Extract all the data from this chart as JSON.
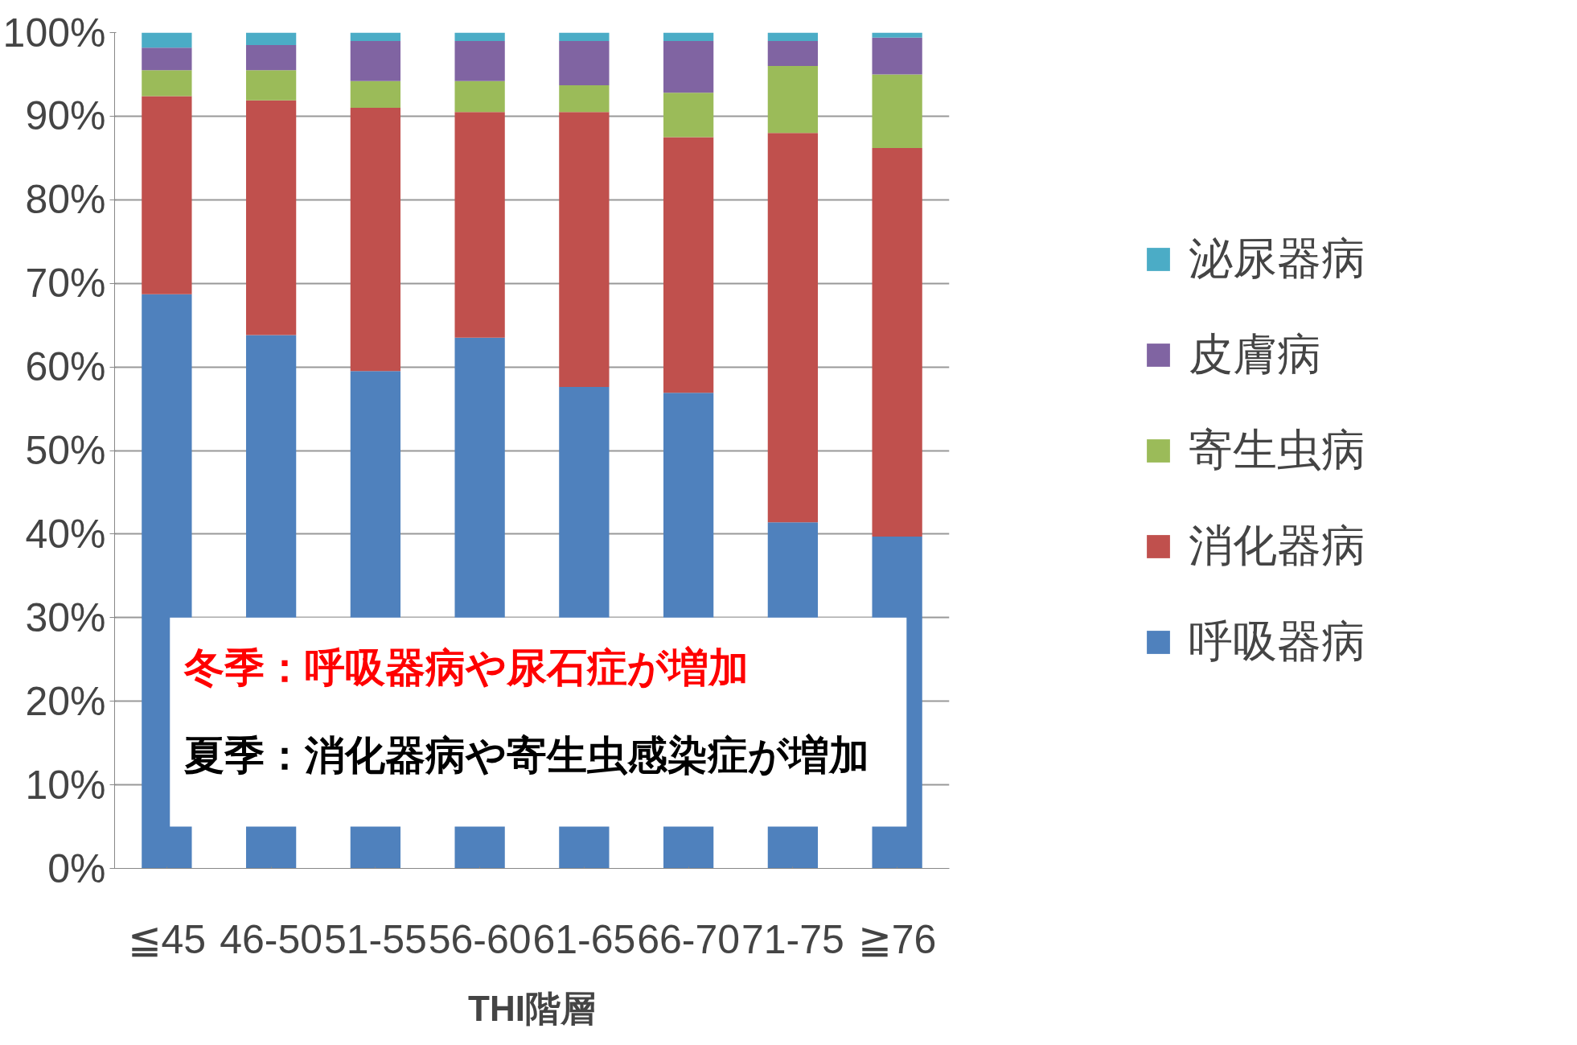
{
  "chart_data": {
    "type": "bar",
    "stacked": true,
    "xlabel": "THI階層",
    "categories": [
      "≦45",
      "46-50",
      "51-55",
      "56-60",
      "61-65",
      "66-70",
      "71-75",
      "≧76"
    ],
    "series": [
      {
        "name": "呼吸器病",
        "color": "#4f81bd",
        "values": [
          68.7,
          63.8,
          59.5,
          63.5,
          57.6,
          56.9,
          41.4,
          39.7
        ]
      },
      {
        "name": "消化器病",
        "color": "#c0504d",
        "values": [
          23.7,
          28.1,
          31.5,
          27.0,
          32.9,
          30.6,
          46.6,
          46.5
        ]
      },
      {
        "name": "寄生虫病",
        "color": "#9bbb59",
        "values": [
          3.1,
          3.6,
          3.2,
          3.7,
          3.2,
          5.3,
          8.0,
          8.8
        ]
      },
      {
        "name": "皮膚病",
        "color": "#8064a2",
        "values": [
          2.7,
          3.0,
          4.8,
          4.8,
          5.3,
          6.2,
          3.0,
          4.4
        ]
      },
      {
        "name": "泌尿器病",
        "color": "#4bacc6",
        "values": [
          1.8,
          1.5,
          1.0,
          1.0,
          1.0,
          1.0,
          1.0,
          0.6
        ]
      }
    ],
    "ylim": [
      0,
      100
    ],
    "yticks": [
      {
        "value": 0,
        "label": "0%"
      },
      {
        "value": 10,
        "label": "10%"
      },
      {
        "value": 20,
        "label": "20%"
      },
      {
        "value": 30,
        "label": "30%"
      },
      {
        "value": 40,
        "label": "40%"
      },
      {
        "value": 50,
        "label": "50%"
      },
      {
        "value": 60,
        "label": "60%"
      },
      {
        "value": 70,
        "label": "70%"
      },
      {
        "value": 80,
        "label": "80%"
      },
      {
        "value": 90,
        "label": "90%"
      },
      {
        "value": 100,
        "label": "100%"
      }
    ],
    "grid": "y",
    "legend": "right",
    "annotations": [
      "冬季：呼吸器病や尿石症が増加",
      "夏季：消化器病や寄生虫感染症が増加"
    ]
  }
}
